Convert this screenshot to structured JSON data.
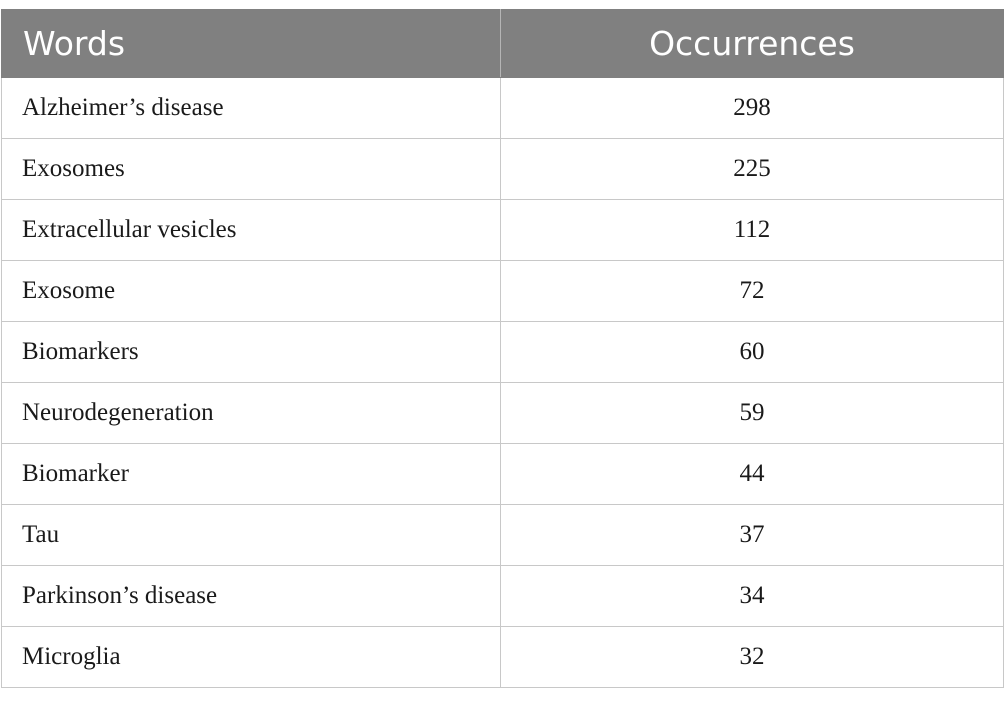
{
  "table": {
    "headers": {
      "words": "Words",
      "occurrences": "Occurrences"
    },
    "rows": [
      {
        "word": "Alzheimer’s disease",
        "count": "298"
      },
      {
        "word": "Exosomes",
        "count": "225"
      },
      {
        "word": "Extracellular vesicles",
        "count": "112"
      },
      {
        "word": "Exosome",
        "count": "72"
      },
      {
        "word": "Biomarkers",
        "count": "60"
      },
      {
        "word": "Neurodegeneration",
        "count": "59"
      },
      {
        "word": "Biomarker",
        "count": "44"
      },
      {
        "word": "Tau",
        "count": "37"
      },
      {
        "word": "Parkinson’s disease",
        "count": "34"
      },
      {
        "word": "Microglia",
        "count": "32"
      }
    ]
  },
  "colors": {
    "header_background": "#808080",
    "header_text": "#ffffff",
    "border": "#c8c8c8"
  }
}
